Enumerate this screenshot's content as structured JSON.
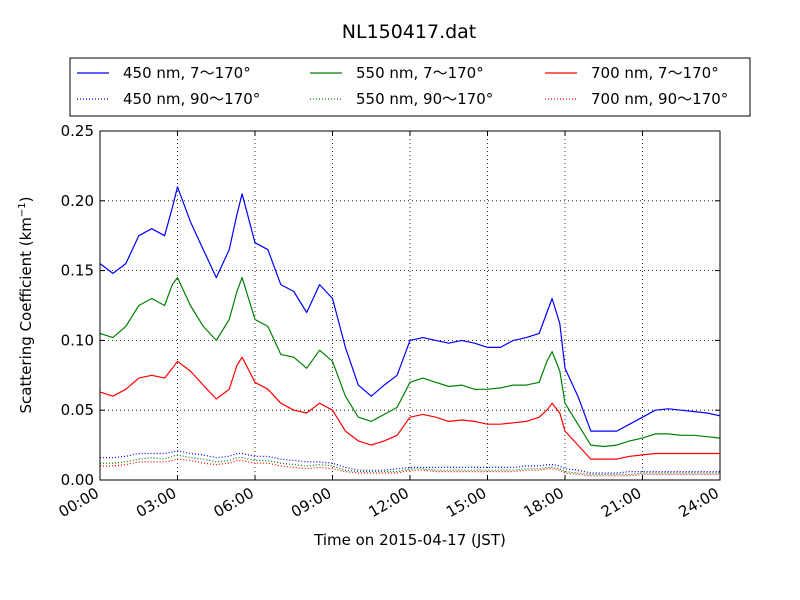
{
  "chart_data": {
    "type": "line",
    "title": "NL150417.dat",
    "xlabel": "Time on 2015-04-17 (JST)",
    "ylabel": "Scattering Coefficient (km",
    "ylabel_sup": "−1",
    "ylabel_close": ")",
    "xlim": [
      "00:00",
      "24:00"
    ],
    "ylim": [
      0,
      0.25
    ],
    "grid": true,
    "legend_position": "top",
    "x_ticks": [
      "00:00",
      "03:00",
      "06:00",
      "09:00",
      "12:00",
      "15:00",
      "18:00",
      "21:00",
      "24:00"
    ],
    "x_tick_hours": [
      0,
      3,
      6,
      9,
      12,
      15,
      18,
      21,
      24
    ],
    "y_ticks": [
      "0.00",
      "0.05",
      "0.10",
      "0.15",
      "0.20",
      "0.25"
    ],
    "y_tick_values": [
      0,
      0.05,
      0.1,
      0.15,
      0.2,
      0.25
    ],
    "x_hours": [
      0,
      0.5,
      1,
      1.5,
      2,
      2.5,
      2.8,
      3,
      3.5,
      4,
      4.5,
      5,
      5.3,
      5.5,
      6,
      6.5,
      7,
      7.5,
      8,
      8.5,
      9,
      9.5,
      10,
      10.5,
      11,
      11.5,
      12,
      12.5,
      13,
      13.5,
      14,
      14.5,
      15,
      15.5,
      16,
      16.5,
      17,
      17.3,
      17.5,
      17.8,
      18,
      18.5,
      19,
      19.5,
      20,
      20.5,
      21,
      21.5,
      22,
      22.5,
      23,
      23.5,
      24
    ],
    "series": [
      {
        "name": "450 nm, 7～170°",
        "color": "#0000ff",
        "style": "solid",
        "values": [
          0.155,
          0.148,
          0.155,
          0.175,
          0.18,
          0.175,
          0.195,
          0.21,
          0.185,
          0.165,
          0.145,
          0.165,
          0.19,
          0.205,
          0.17,
          0.165,
          0.14,
          0.135,
          0.12,
          0.14,
          0.13,
          0.095,
          0.068,
          0.06,
          0.068,
          0.075,
          0.1,
          0.102,
          0.1,
          0.098,
          0.1,
          0.098,
          0.095,
          0.095,
          0.1,
          0.102,
          0.105,
          0.12,
          0.13,
          0.112,
          0.08,
          0.06,
          0.035,
          0.035,
          0.035,
          0.04,
          0.045,
          0.05,
          0.051,
          0.05,
          0.049,
          0.048,
          0.046
        ]
      },
      {
        "name": "550 nm, 7～170°",
        "color": "#008000",
        "style": "solid",
        "values": [
          0.105,
          0.102,
          0.11,
          0.125,
          0.13,
          0.125,
          0.14,
          0.145,
          0.125,
          0.11,
          0.1,
          0.115,
          0.135,
          0.145,
          0.115,
          0.11,
          0.09,
          0.088,
          0.08,
          0.093,
          0.085,
          0.06,
          0.045,
          0.042,
          0.047,
          0.052,
          0.07,
          0.073,
          0.07,
          0.067,
          0.068,
          0.065,
          0.065,
          0.066,
          0.068,
          0.068,
          0.07,
          0.085,
          0.092,
          0.078,
          0.055,
          0.04,
          0.025,
          0.024,
          0.025,
          0.028,
          0.03,
          0.033,
          0.033,
          0.032,
          0.032,
          0.031,
          0.03
        ]
      },
      {
        "name": "700 nm, 7～170°",
        "color": "#ff0000",
        "style": "solid",
        "values": [
          0.063,
          0.06,
          0.065,
          0.073,
          0.075,
          0.073,
          0.08,
          0.085,
          0.078,
          0.068,
          0.058,
          0.065,
          0.082,
          0.088,
          0.07,
          0.065,
          0.055,
          0.05,
          0.048,
          0.055,
          0.05,
          0.035,
          0.028,
          0.025,
          0.028,
          0.032,
          0.045,
          0.047,
          0.045,
          0.042,
          0.043,
          0.042,
          0.04,
          0.04,
          0.041,
          0.042,
          0.045,
          0.05,
          0.055,
          0.048,
          0.035,
          0.025,
          0.015,
          0.015,
          0.015,
          0.017,
          0.018,
          0.019,
          0.019,
          0.019,
          0.019,
          0.019,
          0.019
        ]
      },
      {
        "name": "450 nm, 90～170°",
        "color": "#0000ff",
        "style": "dotted",
        "values": [
          0.016,
          0.016,
          0.017,
          0.019,
          0.019,
          0.019,
          0.02,
          0.021,
          0.019,
          0.018,
          0.016,
          0.017,
          0.019,
          0.019,
          0.017,
          0.017,
          0.015,
          0.014,
          0.013,
          0.013,
          0.012,
          0.009,
          0.007,
          0.007,
          0.007,
          0.008,
          0.009,
          0.009,
          0.009,
          0.009,
          0.009,
          0.009,
          0.009,
          0.009,
          0.009,
          0.01,
          0.01,
          0.011,
          0.011,
          0.01,
          0.008,
          0.007,
          0.005,
          0.005,
          0.005,
          0.006,
          0.006,
          0.006,
          0.006,
          0.006,
          0.006,
          0.006,
          0.006
        ]
      },
      {
        "name": "550 nm, 90～170°",
        "color": "#008000",
        "style": "dotted",
        "values": [
          0.012,
          0.012,
          0.013,
          0.015,
          0.016,
          0.015,
          0.017,
          0.018,
          0.016,
          0.015,
          0.013,
          0.014,
          0.016,
          0.016,
          0.014,
          0.014,
          0.012,
          0.011,
          0.01,
          0.011,
          0.01,
          0.007,
          0.006,
          0.006,
          0.006,
          0.006,
          0.008,
          0.008,
          0.007,
          0.007,
          0.007,
          0.007,
          0.007,
          0.007,
          0.007,
          0.008,
          0.008,
          0.009,
          0.009,
          0.008,
          0.006,
          0.005,
          0.004,
          0.004,
          0.004,
          0.004,
          0.005,
          0.005,
          0.005,
          0.005,
          0.005,
          0.005,
          0.005
        ]
      },
      {
        "name": "700 nm, 90～170°",
        "color": "#ff0000",
        "style": "dotted",
        "values": [
          0.01,
          0.01,
          0.011,
          0.013,
          0.013,
          0.013,
          0.014,
          0.015,
          0.014,
          0.012,
          0.011,
          0.012,
          0.014,
          0.014,
          0.012,
          0.012,
          0.01,
          0.009,
          0.008,
          0.009,
          0.008,
          0.006,
          0.005,
          0.005,
          0.005,
          0.005,
          0.007,
          0.007,
          0.006,
          0.006,
          0.006,
          0.006,
          0.006,
          0.006,
          0.006,
          0.007,
          0.007,
          0.008,
          0.008,
          0.007,
          0.005,
          0.004,
          0.003,
          0.003,
          0.003,
          0.003,
          0.004,
          0.004,
          0.004,
          0.004,
          0.004,
          0.004,
          0.004
        ]
      }
    ]
  }
}
